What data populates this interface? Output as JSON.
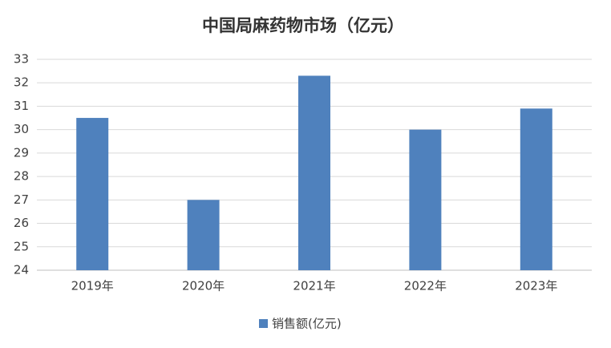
{
  "chart_data": {
    "type": "bar",
    "title": "中国局麻药物市场（亿元）",
    "categories": [
      "2019年",
      "2020年",
      "2021年",
      "2022年",
      "2023年"
    ],
    "series": [
      {
        "name": "销售额(亿元)",
        "color": "#4f81bd",
        "values": [
          30.5,
          27.0,
          32.3,
          30.0,
          30.9
        ]
      }
    ],
    "ylim": [
      24,
      33
    ],
    "yticks": [
      24,
      25,
      26,
      27,
      28,
      29,
      30,
      31,
      32,
      33
    ],
    "grid": true,
    "legend": "bottom"
  }
}
